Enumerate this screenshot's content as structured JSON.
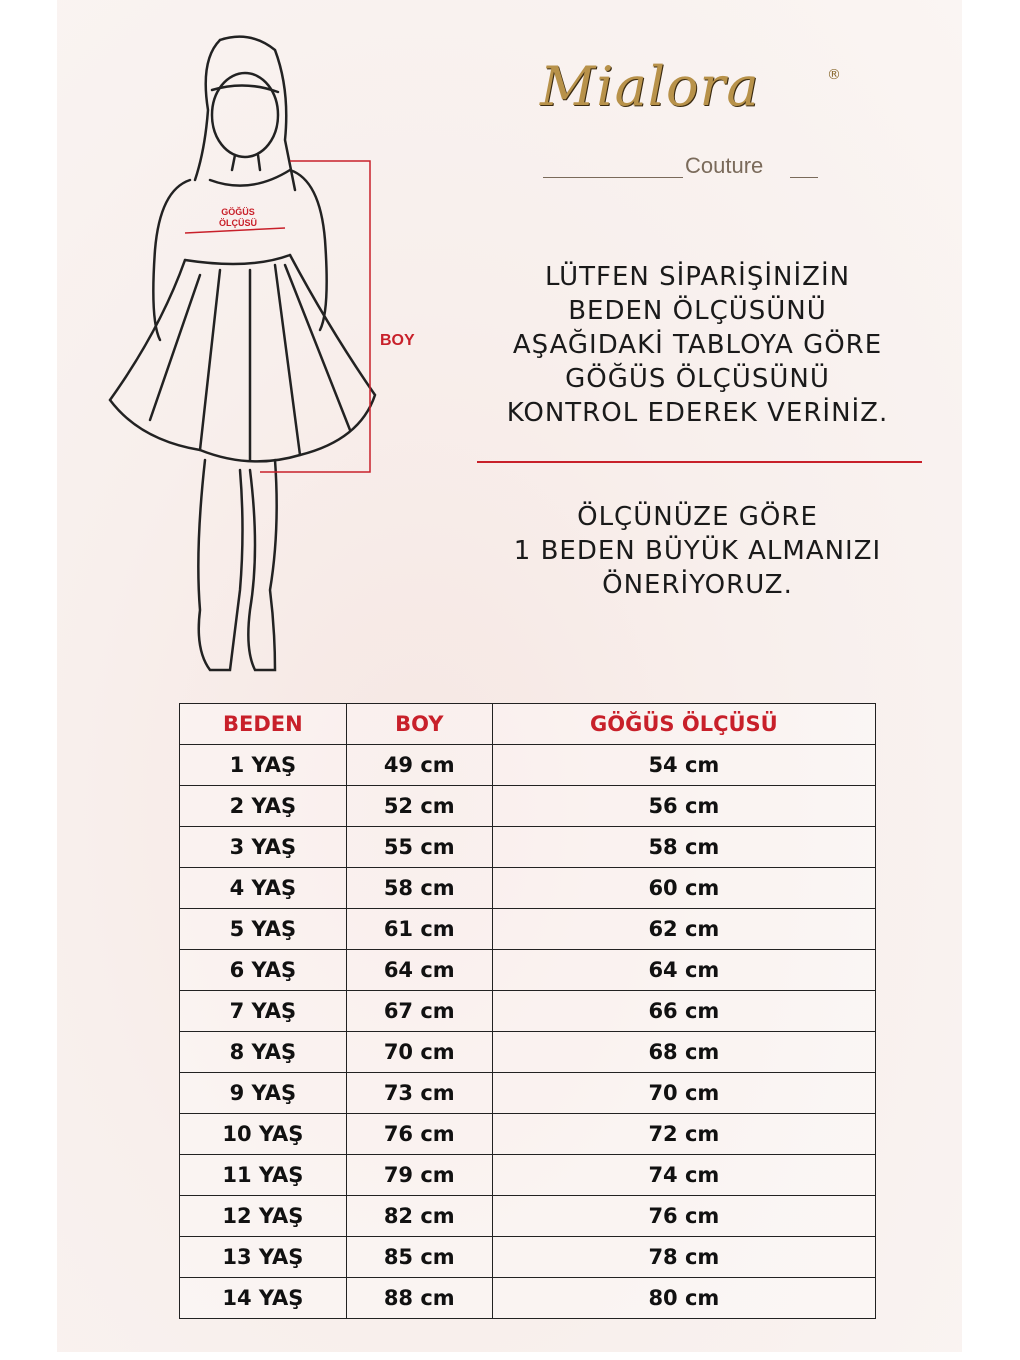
{
  "brand": {
    "name": "Mialora",
    "registered": "®",
    "tagline": "Couture"
  },
  "figure_labels": {
    "chest": "GÖĞÜS ÖLÇÜSÜ",
    "length": "BOY"
  },
  "instructions": [
    "LÜTFEN SİPARİŞİNİZİN",
    "BEDEN ÖLÇÜSÜNÜ",
    "AŞAĞIDAKİ TABLOYA GÖRE",
    "GÖĞÜS ÖLÇÜSÜNÜ",
    "KONTROL EDEREK VERİNİZ."
  ],
  "recommendation": [
    "ÖLÇÜNÜZE GÖRE",
    "1 BEDEN BÜYÜK ALMANIZI",
    "ÖNERİYORUZ."
  ],
  "colors": {
    "accent": "#c8202a",
    "gold": "#b8924a"
  },
  "table": {
    "headers": [
      "BEDEN",
      "BOY",
      "GÖĞÜS ÖLÇÜSÜ"
    ],
    "rows": [
      [
        "1 YAŞ",
        "49 cm",
        "54 cm"
      ],
      [
        "2 YAŞ",
        "52 cm",
        "56 cm"
      ],
      [
        "3 YAŞ",
        "55 cm",
        "58 cm"
      ],
      [
        "4 YAŞ",
        "58 cm",
        "60 cm"
      ],
      [
        "5 YAŞ",
        "61 cm",
        "62 cm"
      ],
      [
        "6 YAŞ",
        "64 cm",
        "64 cm"
      ],
      [
        "7 YAŞ",
        "67 cm",
        "66 cm"
      ],
      [
        "8 YAŞ",
        "70 cm",
        "68 cm"
      ],
      [
        "9 YAŞ",
        "73 cm",
        "70 cm"
      ],
      [
        "10 YAŞ",
        "76 cm",
        "72 cm"
      ],
      [
        "11 YAŞ",
        "79 cm",
        "74 cm"
      ],
      [
        "12 YAŞ",
        "82 cm",
        "76 cm"
      ],
      [
        "13 YAŞ",
        "85 cm",
        "78 cm"
      ],
      [
        "14 YAŞ",
        "88 cm",
        "80 cm"
      ]
    ]
  }
}
